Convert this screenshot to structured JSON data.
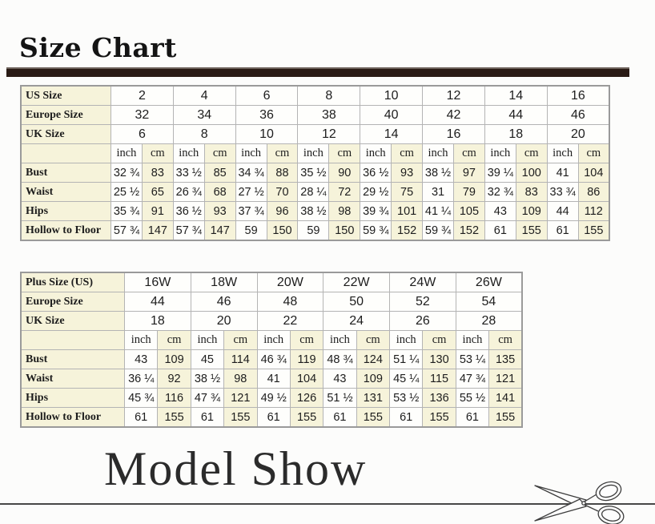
{
  "page": {
    "title": "Size Chart",
    "section2_title": "Model Show"
  },
  "colors": {
    "title_bar": "#2a1b15",
    "cream": "#f6f3da",
    "cell_white": "#fefefc",
    "grid_line": "#b4b4b4",
    "table_border": "#9a9a9a",
    "text": "#1d1d1d",
    "rule_line": "#474747"
  },
  "tables": [
    {
      "name": "standard-sizes",
      "unit_labels": {
        "inch": "inch",
        "cm": "cm"
      },
      "size_rows": [
        {
          "label": "US Size",
          "values": [
            "2",
            "4",
            "6",
            "8",
            "10",
            "12",
            "14",
            "16"
          ]
        },
        {
          "label": "Europe Size",
          "values": [
            "32",
            "34",
            "36",
            "38",
            "40",
            "42",
            "44",
            "46"
          ]
        },
        {
          "label": "UK Size",
          "values": [
            "6",
            "8",
            "10",
            "12",
            "14",
            "16",
            "18",
            "20"
          ]
        }
      ],
      "measurement_rows": [
        {
          "label": "Bust",
          "pairs": [
            [
              "32 ¾",
              "83"
            ],
            [
              "33 ½",
              "85"
            ],
            [
              "34 ¾",
              "88"
            ],
            [
              "35 ½",
              "90"
            ],
            [
              "36 ½",
              "93"
            ],
            [
              "38 ½",
              "97"
            ],
            [
              "39 ¼",
              "100"
            ],
            [
              "41",
              "104"
            ]
          ]
        },
        {
          "label": "Waist",
          "pairs": [
            [
              "25 ½",
              "65"
            ],
            [
              "26 ¾",
              "68"
            ],
            [
              "27 ½",
              "70"
            ],
            [
              "28 ¼",
              "72"
            ],
            [
              "29 ½",
              "75"
            ],
            [
              "31",
              "79"
            ],
            [
              "32 ¾",
              "83"
            ],
            [
              "33 ¾",
              "86"
            ]
          ]
        },
        {
          "label": "Hips",
          "pairs": [
            [
              "35 ¾",
              "91"
            ],
            [
              "36 ½",
              "93"
            ],
            [
              "37 ¾",
              "96"
            ],
            [
              "38 ½",
              "98"
            ],
            [
              "39 ¾",
              "101"
            ],
            [
              "41 ¼",
              "105"
            ],
            [
              "43",
              "109"
            ],
            [
              "44",
              "112"
            ]
          ]
        },
        {
          "label": "Hollow to Floor",
          "pairs": [
            [
              "57 ¾",
              "147"
            ],
            [
              "57 ¾",
              "147"
            ],
            [
              "59",
              "150"
            ],
            [
              "59",
              "150"
            ],
            [
              "59 ¾",
              "152"
            ],
            [
              "59 ¾",
              "152"
            ],
            [
              "61",
              "155"
            ],
            [
              "61",
              "155"
            ]
          ]
        }
      ]
    },
    {
      "name": "plus-sizes",
      "unit_labels": {
        "inch": "inch",
        "cm": "cm"
      },
      "size_rows": [
        {
          "label": "Plus Size (US)",
          "values": [
            "16W",
            "18W",
            "20W",
            "22W",
            "24W",
            "26W"
          ]
        },
        {
          "label": "Europe Size",
          "values": [
            "44",
            "46",
            "48",
            "50",
            "52",
            "54"
          ]
        },
        {
          "label": "UK Size",
          "values": [
            "18",
            "20",
            "22",
            "24",
            "26",
            "28"
          ]
        }
      ],
      "measurement_rows": [
        {
          "label": "Bust",
          "pairs": [
            [
              "43",
              "109"
            ],
            [
              "45",
              "114"
            ],
            [
              "46 ¾",
              "119"
            ],
            [
              "48 ¾",
              "124"
            ],
            [
              "51 ¼",
              "130"
            ],
            [
              "53 ¼",
              "135"
            ]
          ]
        },
        {
          "label": "Waist",
          "pairs": [
            [
              "36 ¼",
              "92"
            ],
            [
              "38 ½",
              "98"
            ],
            [
              "41",
              "104"
            ],
            [
              "43",
              "109"
            ],
            [
              "45 ¼",
              "115"
            ],
            [
              "47 ¾",
              "121"
            ]
          ]
        },
        {
          "label": "Hips",
          "pairs": [
            [
              "45 ¾",
              "116"
            ],
            [
              "47 ¾",
              "121"
            ],
            [
              "49 ½",
              "126"
            ],
            [
              "51 ½",
              "131"
            ],
            [
              "53 ½",
              "136"
            ],
            [
              "55 ½",
              "141"
            ]
          ]
        },
        {
          "label": "Hollow to Floor",
          "pairs": [
            [
              "61",
              "155"
            ],
            [
              "61",
              "155"
            ],
            [
              "61",
              "155"
            ],
            [
              "61",
              "155"
            ],
            [
              "61",
              "155"
            ],
            [
              "61",
              "155"
            ]
          ]
        }
      ]
    }
  ]
}
